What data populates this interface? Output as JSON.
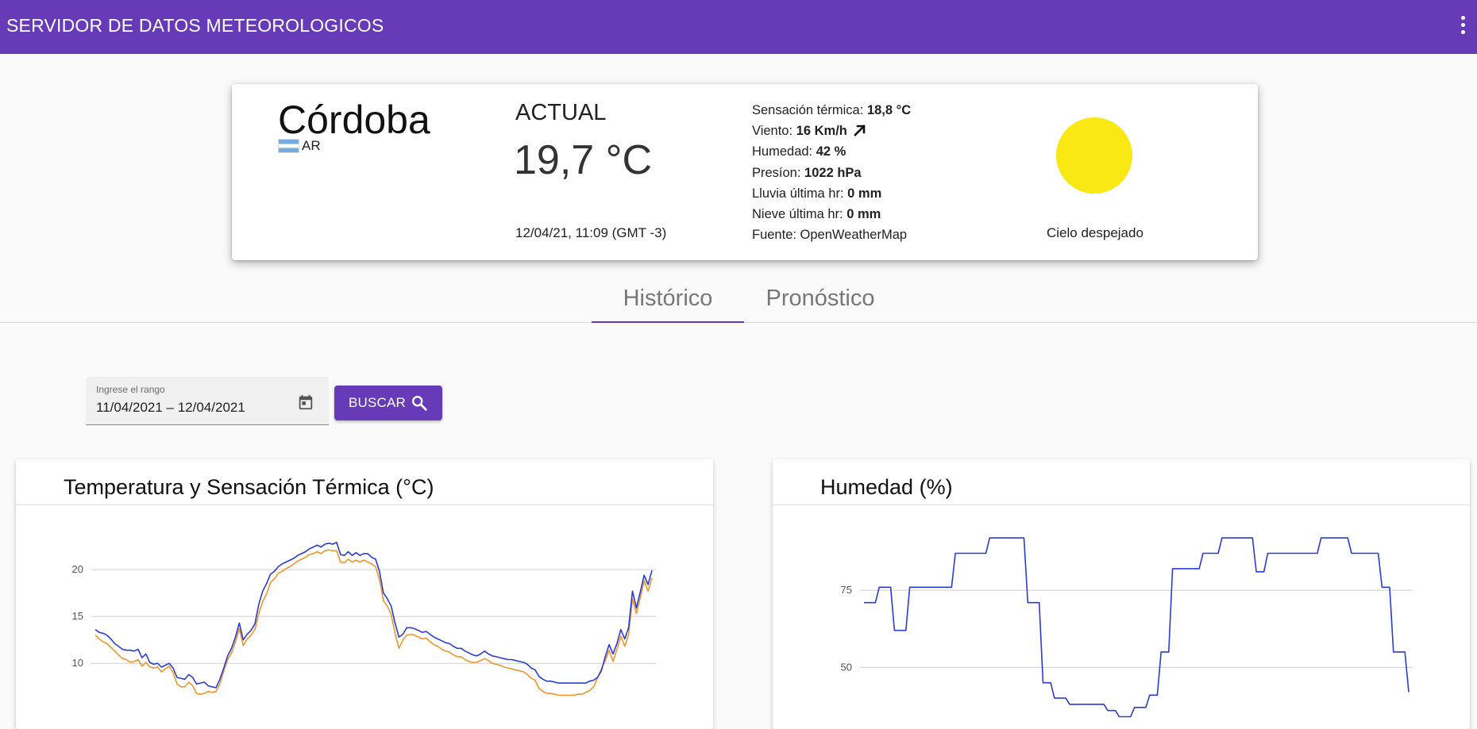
{
  "toolbar": {
    "title": "SERVIDOR DE DATOS METEOROLOGICOS",
    "menu_icon": "more-vert-icon"
  },
  "current": {
    "city": "Córdoba",
    "country": "AR",
    "actual_label": "ACTUAL",
    "temperature": "19,7 °C",
    "timestamp": "12/04/21, 11:09 (GMT -3)",
    "details": [
      {
        "label": "Sensación térmica:",
        "value": "18,8 °C"
      },
      {
        "label": "Viento:",
        "value": "16 Km/h"
      },
      {
        "label": "Humedad:",
        "value": "42 %"
      },
      {
        "label": "Presíon:",
        "value": "1022 hPa"
      },
      {
        "label": "Lluvia última hr:",
        "value": "0 mm"
      },
      {
        "label": "Nieve última hr:",
        "value": "0 mm"
      }
    ],
    "source_label": "Fuente: OpenWeatherMap",
    "sky": "Cielo despejado",
    "sun_color": "#f9e814"
  },
  "tabs": [
    {
      "label": "Histórico",
      "active": true
    },
    {
      "label": "Pronóstico",
      "active": false
    }
  ],
  "range": {
    "label": "Ingrese el rango",
    "value": "11/04/2021 – 12/04/2021",
    "button": "BUSCAR"
  },
  "colors": {
    "primary": "#673ab7",
    "series_a": "#2b3bd6",
    "series_b": "#f0962a"
  },
  "chart_data": [
    {
      "type": "line",
      "title": "Temperatura y Sensación Térmica (°C)",
      "y_ticks": [
        10,
        15,
        20
      ],
      "ylim": [
        3,
        26
      ],
      "grid": true,
      "series": [
        {
          "color": "#2b3bd6",
          "values": [
            13.6,
            13.3,
            13.2,
            13,
            12.6,
            12.1,
            11.8,
            11.5,
            11.4,
            11.4,
            11.3,
            11.5,
            10.6,
            11,
            10.1,
            9.9,
            10,
            9.6,
            9.8,
            10,
            9.5,
            8.5,
            8.4,
            8.3,
            8.8,
            8.5,
            7.8,
            7.9,
            8,
            7.6,
            7.5,
            7.4,
            8.3,
            9.5,
            10.8,
            11.6,
            12.8,
            14.3,
            12.5,
            13.1,
            13.5,
            14.2,
            16.3,
            17.7,
            18.5,
            19.5,
            19.8,
            20.3,
            20.6,
            20.8,
            21,
            21.2,
            21.5,
            21.7,
            21.9,
            22.2,
            22.4,
            22.6,
            22.4,
            22.7,
            22.8,
            22.7,
            22.9,
            21.6,
            21.5,
            21.9,
            21.5,
            21.8,
            21.5,
            21.7,
            21.7,
            21.3,
            21.1,
            19.8,
            17.5,
            16.9,
            16.1,
            14.3,
            12.8,
            13.1,
            13.8,
            13.8,
            13.7,
            13.5,
            13.3,
            13.4,
            13.1,
            12.8,
            12.6,
            12.4,
            12.2,
            12.1,
            11.8,
            11.6,
            11.6,
            11.3,
            11.1,
            10.9,
            10.8,
            11,
            11.3,
            11,
            10.8,
            10.7,
            10.6,
            10.5,
            10.4,
            10.4,
            10.3,
            10.2,
            10.1,
            9.9,
            9.5,
            9.3,
            8.6,
            8.3,
            8.1,
            8.1,
            8,
            7.9,
            7.9,
            7.9,
            7.9,
            7.9,
            7.9,
            7.9,
            7.9,
            8.1,
            8.2,
            8.5,
            9.2,
            10.7,
            12,
            11,
            12.1,
            13.6,
            12.6,
            13.8,
            17.7,
            15.9,
            17.6,
            19.4,
            18.4,
            19.9
          ]
        },
        {
          "color": "#f0962a",
          "values": [
            13,
            12.6,
            12.3,
            12.1,
            11.7,
            11.3,
            10.9,
            10.5,
            10.4,
            10.1,
            10.2,
            10.4,
            9.7,
            10.1,
            9.6,
            9.5,
            9.6,
            9.1,
            9.4,
            9.7,
            9,
            7.8,
            7.5,
            7.5,
            8,
            7.6,
            6.8,
            6.7,
            6.8,
            7,
            6.9,
            7,
            7.8,
            9.2,
            10.4,
            11.1,
            12.3,
            13.7,
            11.9,
            12.6,
            13,
            13.6,
            15.3,
            16.6,
            17.4,
            18.6,
            19,
            19.6,
            19.8,
            20.1,
            20.3,
            20.6,
            20.9,
            21.1,
            21.3,
            21.6,
            21.7,
            21.9,
            21.7,
            22,
            22.1,
            22,
            22,
            20.8,
            20.7,
            21.1,
            20.8,
            21,
            20.8,
            21,
            20.8,
            20.6,
            20.3,
            18.9,
            16.7,
            16.1,
            15.2,
            13.2,
            11.6,
            12.5,
            13,
            13.1,
            13,
            12.8,
            12.6,
            12.7,
            12.3,
            12,
            11.8,
            11.5,
            11.3,
            11.2,
            10.9,
            10.7,
            10.7,
            10.4,
            10.2,
            10.1,
            10.1,
            10.3,
            10.5,
            10.3,
            10,
            9.9,
            9.8,
            9.6,
            9.5,
            9.4,
            9.3,
            9.2,
            9.1,
            8.8,
            8.4,
            8.2,
            7.3,
            7,
            6.8,
            6.8,
            6.7,
            6.6,
            6.6,
            6.6,
            6.6,
            6.6,
            6.7,
            6.7,
            6.9,
            7.1,
            7.5,
            8.4,
            9.4,
            10.3,
            11.4,
            10.2,
            11.5,
            12.9,
            11.8,
            13.1,
            16.9,
            15.3,
            17,
            18.8,
            17.7,
            19.1
          ]
        }
      ]
    },
    {
      "type": "line",
      "title": "Humedad (%)",
      "y_ticks": [
        50,
        75
      ],
      "ylim": [
        30,
        100
      ],
      "grid": true,
      "series": [
        {
          "color": "#2b3bd6",
          "values": [
            71,
            71,
            71,
            71,
            76,
            76,
            76,
            76,
            62,
            62,
            62,
            62,
            76,
            76,
            76,
            76,
            76,
            76,
            76,
            76,
            76,
            76,
            76,
            76,
            87,
            87,
            87,
            87,
            87,
            87,
            87,
            87,
            87,
            92,
            92,
            92,
            92,
            92,
            92,
            92,
            92,
            92,
            92,
            71,
            71,
            71,
            71,
            45,
            45,
            45,
            40,
            40,
            40,
            40,
            38,
            38,
            38,
            38,
            38,
            38,
            38,
            38,
            38,
            38,
            36,
            36,
            36,
            34,
            34,
            34,
            34,
            37,
            37,
            37,
            37,
            41,
            41,
            41,
            55,
            55,
            55,
            82,
            82,
            82,
            82,
            82,
            82,
            82,
            82,
            87,
            87,
            87,
            87,
            87,
            92,
            92,
            92,
            92,
            92,
            92,
            92,
            92,
            92,
            81,
            81,
            81,
            87,
            87,
            87,
            87,
            87,
            87,
            87,
            87,
            87,
            87,
            87,
            87,
            87,
            87,
            92,
            92,
            92,
            92,
            92,
            92,
            92,
            92,
            87,
            87,
            87,
            87,
            87,
            87,
            87,
            87,
            76,
            76,
            76,
            55,
            55,
            55,
            55,
            42
          ]
        }
      ]
    }
  ]
}
